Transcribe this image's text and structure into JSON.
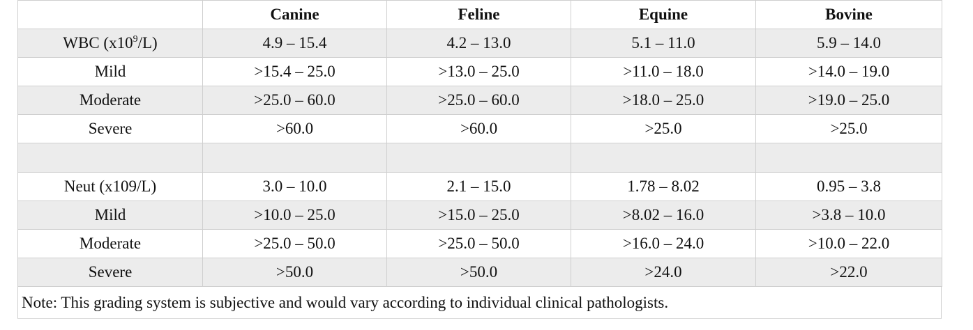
{
  "table": {
    "header": [
      "",
      "Canine",
      "Feline",
      "Equine",
      "Bovine"
    ],
    "wbc": {
      "label_prefix": "WBC (x10",
      "label_sup": "9",
      "label_suffix": "/L)",
      "values": [
        "4.9 – 15.4",
        "4.2 – 13.0",
        "5.1 – 11.0",
        "5.9 – 14.0"
      ]
    },
    "wbc_grades": [
      {
        "label": "Mild",
        "values": [
          ">15.4 – 25.0",
          ">13.0 – 25.0",
          ">11.0 – 18.0",
          ">14.0 – 19.0"
        ]
      },
      {
        "label": "Moderate",
        "values": [
          ">25.0 – 60.0",
          ">25.0 – 60.0",
          ">18.0 – 25.0",
          ">19.0 – 25.0"
        ]
      },
      {
        "label": "Severe",
        "values": [
          ">60.0",
          ">60.0",
          ">25.0",
          ">25.0"
        ]
      }
    ],
    "neut": {
      "label": "Neut (x109/L)",
      "values": [
        "3.0 – 10.0",
        "2.1 – 15.0",
        "1.78 – 8.02",
        "0.95 – 3.8"
      ]
    },
    "neut_grades": [
      {
        "label": "Mild",
        "values": [
          ">10.0 – 25.0",
          ">15.0 – 25.0",
          ">8.02 – 16.0",
          ">3.8 – 10.0"
        ]
      },
      {
        "label": "Moderate",
        "values": [
          ">25.0 – 50.0",
          ">25.0 – 50.0",
          ">16.0 – 24.0",
          ">10.0 – 22.0"
        ]
      },
      {
        "label": "Severe",
        "values": [
          ">50.0",
          ">50.0",
          ">24.0",
          ">22.0"
        ]
      }
    ],
    "note": "Note: This grading system is subjective and would vary according to individual clinical pathologists."
  }
}
